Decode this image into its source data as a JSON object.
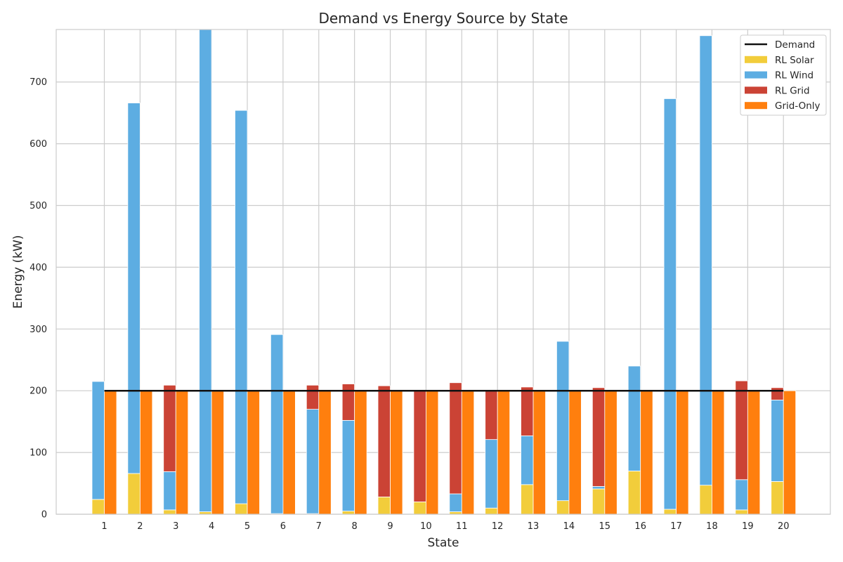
{
  "chart_data": {
    "type": "bar",
    "title": "Demand vs Energy Source by State",
    "xlabel": "State",
    "ylabel": "Energy (kW)",
    "categories": [
      "1",
      "2",
      "3",
      "4",
      "5",
      "6",
      "7",
      "8",
      "9",
      "10",
      "11",
      "12",
      "13",
      "14",
      "15",
      "16",
      "17",
      "18",
      "19",
      "20"
    ],
    "ylim": [
      0,
      785
    ],
    "yticks": [
      0,
      100,
      200,
      300,
      400,
      500,
      600,
      700
    ],
    "grid": true,
    "legend_position": "top-right",
    "demand": {
      "name": "Demand",
      "value": 200,
      "color": "#111111"
    },
    "series": [
      {
        "name": "RL Solar",
        "color": "#f2cd3b",
        "stack": "RL",
        "values": [
          24,
          66,
          7,
          4,
          17,
          1,
          1,
          5,
          28,
          20,
          4,
          10,
          48,
          22,
          41,
          70,
          8,
          47,
          7,
          53
        ]
      },
      {
        "name": "RL Wind",
        "color": "#5dade2",
        "stack": "RL",
        "values": [
          191,
          600,
          62,
          781,
          637,
          290,
          169,
          147,
          0,
          0,
          29,
          111,
          79,
          258,
          4,
          170,
          665,
          728,
          49,
          132
        ]
      },
      {
        "name": "RL Grid",
        "color": "#cb4335",
        "stack": "RL",
        "values": [
          0,
          0,
          140,
          0,
          0,
          0,
          39,
          59,
          180,
          180,
          180,
          79,
          79,
          0,
          160,
          0,
          0,
          0,
          160,
          20
        ]
      },
      {
        "name": "Grid-Only",
        "color": "#ff7f0e",
        "stack": "Grid",
        "values": [
          200,
          200,
          200,
          200,
          200,
          200,
          200,
          200,
          200,
          200,
          200,
          200,
          200,
          200,
          200,
          200,
          200,
          200,
          200,
          200
        ]
      }
    ]
  }
}
